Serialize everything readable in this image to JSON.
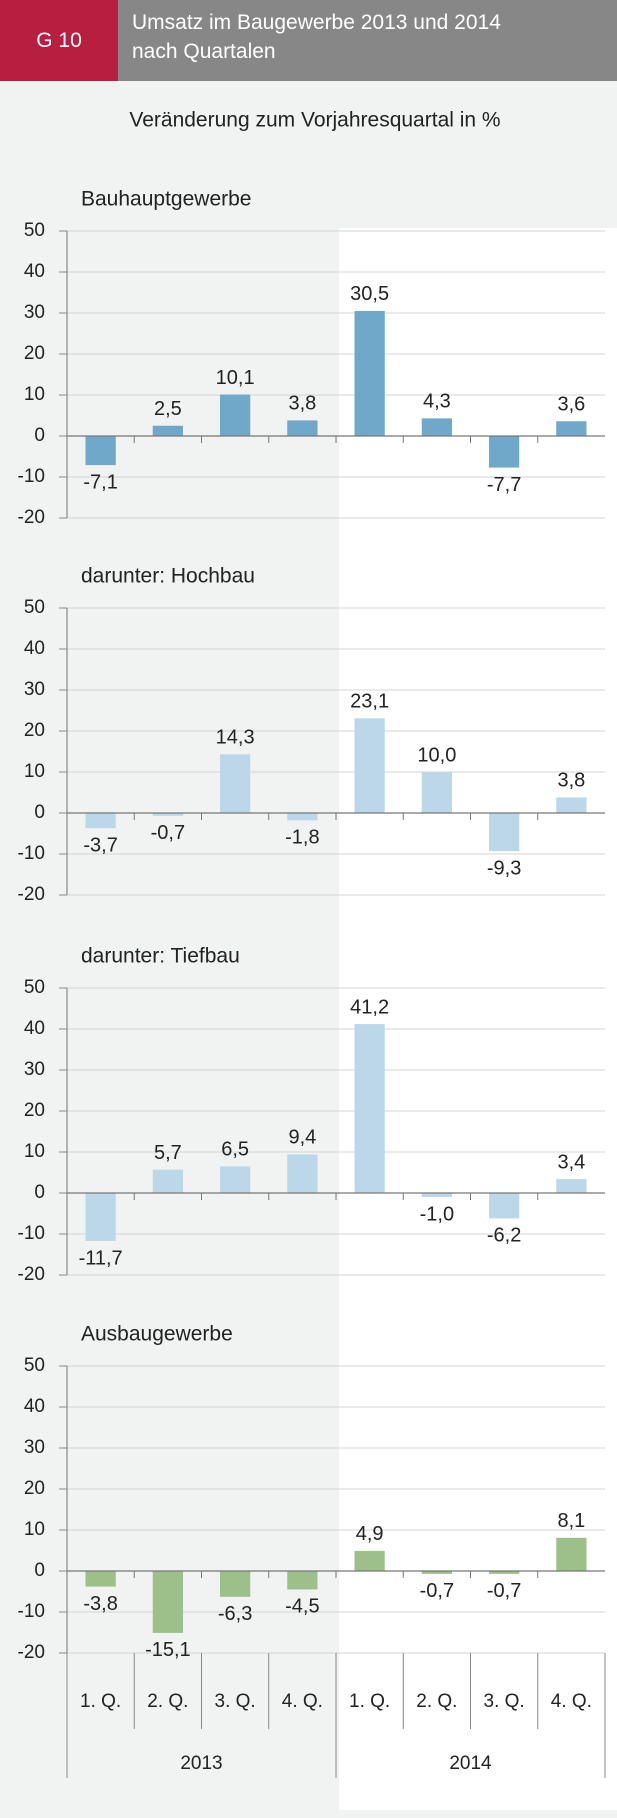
{
  "header": {
    "badge": "G 10",
    "title": "Umsatz im Baugewerbe 2013 und 2014 nach Quartalen"
  },
  "subtitle": "Veränderung zum Vorjahresquartal in %",
  "chart_data": [
    {
      "type": "bar",
      "title": "Bauhauptgewerbe",
      "color": "#6fa8c9",
      "title_color": "#1f6fa1",
      "label_color": "#1d5f8f",
      "values": [
        -7.1,
        2.5,
        10.1,
        3.8,
        30.5,
        4.3,
        -7.7,
        3.6
      ],
      "value_labels": [
        "-7,1",
        "2,5",
        "10,1",
        "3,8",
        "30,5",
        "4,3",
        "-7,7",
        "3,6"
      ],
      "ylim": [
        -20,
        50
      ],
      "yticks": [
        -20,
        -10,
        0,
        10,
        20,
        30,
        40,
        50
      ],
      "grid": true
    },
    {
      "type": "bar",
      "title": "darunter: Hochbau",
      "color": "#bcd8e8",
      "title_color": "#7fb4d0",
      "label_color": "#1d5f8f",
      "values": [
        -3.7,
        -0.7,
        14.3,
        -1.8,
        23.1,
        10.0,
        -9.3,
        3.8
      ],
      "value_labels": [
        "-3,7",
        "-0,7",
        "14,3",
        "-1,8",
        "23,1",
        "10,0",
        "-9,3",
        "3,8"
      ],
      "ylim": [
        -20,
        50
      ],
      "yticks": [
        -20,
        -10,
        0,
        10,
        20,
        30,
        40,
        50
      ],
      "grid": true
    },
    {
      "type": "bar",
      "title": "darunter: Tiefbau",
      "color": "#bcd8e8",
      "title_color": "#7fb4d0",
      "label_color": "#1d5f8f",
      "values": [
        -11.7,
        5.7,
        6.5,
        9.4,
        41.2,
        -1.0,
        -6.2,
        3.4
      ],
      "value_labels": [
        "-11,7",
        "5,7",
        "6,5",
        "9,4",
        "41,2",
        "-1,0",
        "-6,2",
        "3,4"
      ],
      "ylim": [
        -20,
        50
      ],
      "yticks": [
        -20,
        -10,
        0,
        10,
        20,
        30,
        40,
        50
      ],
      "grid": true
    },
    {
      "type": "bar",
      "title": "Ausbaugewerbe",
      "color": "#9dc08b",
      "title_color": "#4e7f35",
      "label_color": "#4e7f35",
      "values": [
        -3.8,
        -15.1,
        -6.3,
        -4.5,
        4.9,
        -0.7,
        -0.7,
        8.1
      ],
      "value_labels": [
        "-3,8",
        "-15,1",
        "-6,3",
        "-4,5",
        "4,9",
        "-0,7",
        "-0,7",
        "8,1"
      ],
      "ylim": [
        -20,
        50
      ],
      "yticks": [
        -20,
        -10,
        0,
        10,
        20,
        30,
        40,
        50
      ],
      "grid": true,
      "categories": [
        "1. Q.",
        "2. Q.",
        "3. Q.",
        "4. Q.",
        "1. Q.",
        "2. Q.",
        "3. Q.",
        "4. Q."
      ],
      "groups": [
        "2013",
        "2014"
      ]
    }
  ]
}
